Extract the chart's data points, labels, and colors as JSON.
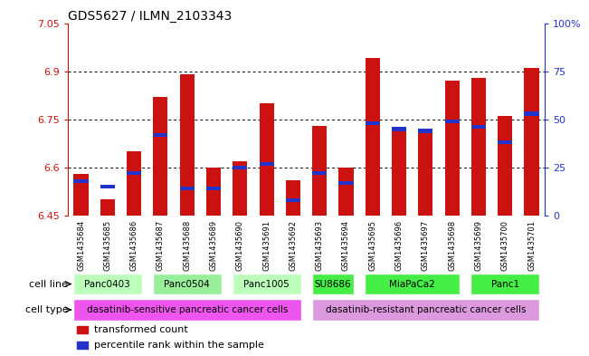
{
  "title": "GDS5627 / ILMN_2103343",
  "samples": [
    "GSM1435684",
    "GSM1435685",
    "GSM1435686",
    "GSM1435687",
    "GSM1435688",
    "GSM1435689",
    "GSM1435690",
    "GSM1435691",
    "GSM1435692",
    "GSM1435693",
    "GSM1435694",
    "GSM1435695",
    "GSM1435696",
    "GSM1435697",
    "GSM1435698",
    "GSM1435699",
    "GSM1435700",
    "GSM1435701"
  ],
  "transformed_count": [
    6.58,
    6.5,
    6.65,
    6.82,
    6.89,
    6.6,
    6.62,
    6.8,
    6.56,
    6.73,
    6.6,
    6.94,
    6.72,
    6.72,
    6.87,
    6.88,
    6.76,
    6.91
  ],
  "percentile_rank": [
    18,
    15,
    22,
    42,
    14,
    14,
    25,
    27,
    8,
    22,
    17,
    48,
    45,
    44,
    49,
    46,
    38,
    53
  ],
  "ylim_left": [
    6.45,
    7.05
  ],
  "ylim_right": [
    0,
    100
  ],
  "yticks_left": [
    6.45,
    6.6,
    6.75,
    6.9,
    7.05
  ],
  "ytick_labels_left": [
    "6.45",
    "6.6",
    "6.75",
    "6.9",
    "7.05"
  ],
  "yticks_right": [
    0,
    25,
    50,
    75,
    100
  ],
  "ytick_labels_right": [
    "0",
    "25",
    "50",
    "75",
    "100%"
  ],
  "bar_color": "#cc1111",
  "pct_color": "#2233cc",
  "bar_base": 6.45,
  "cell_lines": [
    {
      "label": "Panc0403",
      "start": 0,
      "end": 2,
      "color": "#bbffbb"
    },
    {
      "label": "Panc0504",
      "start": 3,
      "end": 5,
      "color": "#99ee99"
    },
    {
      "label": "Panc1005",
      "start": 6,
      "end": 8,
      "color": "#bbffbb"
    },
    {
      "label": "SU8686",
      "start": 9,
      "end": 10,
      "color": "#44ee44"
    },
    {
      "label": "MiaPaCa2",
      "start": 11,
      "end": 14,
      "color": "#44ee44"
    },
    {
      "label": "Panc1",
      "start": 15,
      "end": 17,
      "color": "#44ee44"
    }
  ],
  "cell_types": [
    {
      "label": "dasatinib-sensitive pancreatic cancer cells",
      "start": 0,
      "end": 8,
      "color": "#ee55ee"
    },
    {
      "label": "dasatinib-resistant pancreatic cancer cells",
      "start": 9,
      "end": 17,
      "color": "#dd99dd"
    }
  ],
  "cell_line_label": "cell line",
  "cell_type_label": "cell type",
  "legend_items": [
    {
      "label": "transformed count",
      "color": "#cc1111"
    },
    {
      "label": "percentile rank within the sample",
      "color": "#2233cc"
    }
  ],
  "bar_width": 0.55,
  "dotted_lines": [
    6.6,
    6.75,
    6.9
  ],
  "bg_color": "#ffffff",
  "left_axis_color": "#cc1111",
  "right_axis_color": "#2233cc",
  "tick_bg_color": "#cccccc"
}
